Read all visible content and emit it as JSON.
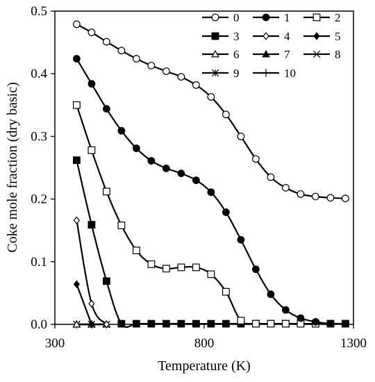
{
  "chart_data": {
    "type": "line",
    "xlabel": "Temperature (K)",
    "ylabel": "Coke mole fraction (dry basic)",
    "xlim": [
      300,
      1300
    ],
    "ylim": [
      0,
      0.5
    ],
    "x_ticks": [
      300,
      800,
      1300
    ],
    "x_tick_labels": [
      "300",
      "800",
      "1300"
    ],
    "y_ticks": [
      0,
      0.1,
      0.2,
      0.3,
      0.4,
      0.5
    ],
    "y_tick_labels": [
      "0.0",
      "0.1",
      "0.2",
      "0.3",
      "0.4",
      "0.5"
    ],
    "grid": false,
    "legend_position": "top-right",
    "legend_columns": 3,
    "series": [
      {
        "name": "0",
        "marker": "circle-open",
        "x": [
          373,
          423,
          473,
          523,
          573,
          623,
          673,
          723,
          773,
          823,
          873,
          923,
          973,
          1023,
          1073,
          1123,
          1173,
          1223,
          1273
        ],
        "values": [
          0.479,
          0.466,
          0.451,
          0.437,
          0.424,
          0.413,
          0.404,
          0.395,
          0.382,
          0.363,
          0.335,
          0.3,
          0.264,
          0.235,
          0.218,
          0.208,
          0.204,
          0.202,
          0.201
        ]
      },
      {
        "name": "1",
        "marker": "circle-filled",
        "x": [
          373,
          423,
          473,
          523,
          573,
          623,
          673,
          723,
          773,
          823,
          873,
          923,
          973,
          1023,
          1073,
          1123,
          1173,
          1223,
          1273
        ],
        "values": [
          0.424,
          0.384,
          0.344,
          0.309,
          0.281,
          0.261,
          0.249,
          0.241,
          0.23,
          0.211,
          0.179,
          0.135,
          0.088,
          0.048,
          0.023,
          0.01,
          0.004,
          0.001,
          0.001
        ]
      },
      {
        "name": "2",
        "marker": "square-open",
        "x": [
          373,
          423,
          473,
          523,
          573,
          623,
          673,
          723,
          773,
          823,
          873,
          923,
          973,
          1023,
          1073,
          1123,
          1173,
          1223,
          1273
        ],
        "values": [
          0.35,
          0.278,
          0.212,
          0.158,
          0.118,
          0.096,
          0.089,
          0.091,
          0.091,
          0.08,
          0.052,
          0.006,
          0.001,
          0.001,
          0.001,
          0.001,
          0.001,
          0.001,
          0.001
        ]
      },
      {
        "name": "3",
        "marker": "square-filled",
        "x": [
          373,
          423,
          473,
          523,
          573,
          623,
          673,
          723,
          773,
          823,
          873,
          923,
          973,
          1023,
          1073,
          1123,
          1173,
          1223,
          1273
        ],
        "values": [
          0.262,
          0.159,
          0.069,
          0.001,
          0.001,
          0.001,
          0.001,
          0.001,
          0.001,
          0.001,
          0.001,
          0.001,
          0.001,
          0.001,
          0.001,
          0.001,
          0.001,
          0.001,
          0.001
        ]
      },
      {
        "name": "4",
        "marker": "diamond-open",
        "x": [
          373,
          423,
          473
        ],
        "values": [
          0.166,
          0.033,
          0.0
        ]
      },
      {
        "name": "5",
        "marker": "diamond-filled",
        "x": [
          373,
          423
        ],
        "values": [
          0.064,
          0.0
        ]
      },
      {
        "name": "6",
        "marker": "triangle-open",
        "x": [
          373,
          423,
          473
        ],
        "values": [
          0.0,
          0.0,
          0.0
        ]
      },
      {
        "name": "7",
        "marker": "triangle-filled",
        "x": [
          373,
          423,
          473
        ],
        "values": [
          0.0,
          0.0,
          0.0
        ]
      },
      {
        "name": "8",
        "marker": "x",
        "x": [
          373,
          423,
          473
        ],
        "values": [
          0.0,
          0.0,
          0.0
        ]
      },
      {
        "name": "9",
        "marker": "star",
        "x": [
          373,
          423,
          473
        ],
        "values": [
          0.0,
          0.0,
          0.0
        ]
      },
      {
        "name": "10",
        "marker": "plus",
        "x": [
          373,
          423,
          473
        ],
        "values": [
          0.0,
          0.0,
          0.0
        ]
      }
    ]
  }
}
